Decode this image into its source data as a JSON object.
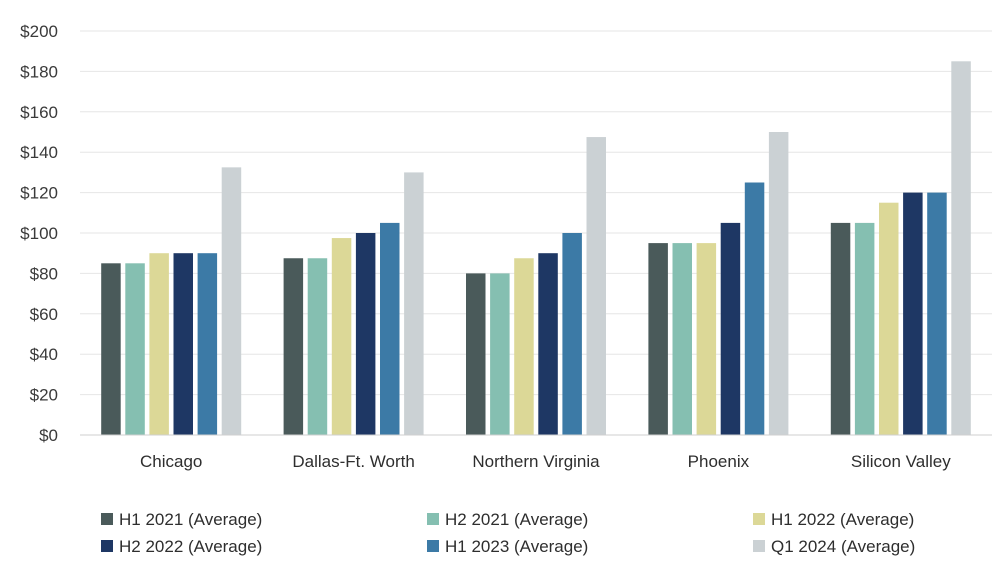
{
  "chart_data": {
    "type": "bar",
    "categories": [
      "Chicago",
      "Dallas-Ft. Worth",
      "Northern Virginia",
      "Phoenix",
      "Silicon Valley"
    ],
    "series": [
      {
        "name": "H1 2021 (Average)",
        "color": "#4a5a5a",
        "values": [
          85,
          87.5,
          80,
          95,
          105
        ]
      },
      {
        "name": "H2 2021 (Average)",
        "color": "#85bfb1",
        "values": [
          85,
          87.5,
          80,
          95,
          105
        ]
      },
      {
        "name": "H1 2022 (Average)",
        "color": "#dcd897",
        "values": [
          90,
          97.5,
          87.5,
          95,
          115
        ]
      },
      {
        "name": "H2 2022 (Average)",
        "color": "#1e3764",
        "values": [
          90,
          100,
          90,
          105,
          120
        ]
      },
      {
        "name": "H1 2023 (Average)",
        "color": "#3c7aa6",
        "values": [
          90,
          105,
          100,
          125,
          120
        ]
      },
      {
        "name": "Q1 2024 (Average)",
        "color": "#cbd1d4",
        "values": [
          132.5,
          130,
          147.5,
          150,
          185
        ]
      }
    ],
    "yticks": [
      "$0",
      "$20",
      "$40",
      "$60",
      "$80",
      "$100",
      "$120",
      "$140",
      "$160",
      "$180",
      "$200"
    ],
    "ylim": [
      0,
      200
    ],
    "ytick_step": 20,
    "grid": true,
    "legend_position": "bottom"
  }
}
